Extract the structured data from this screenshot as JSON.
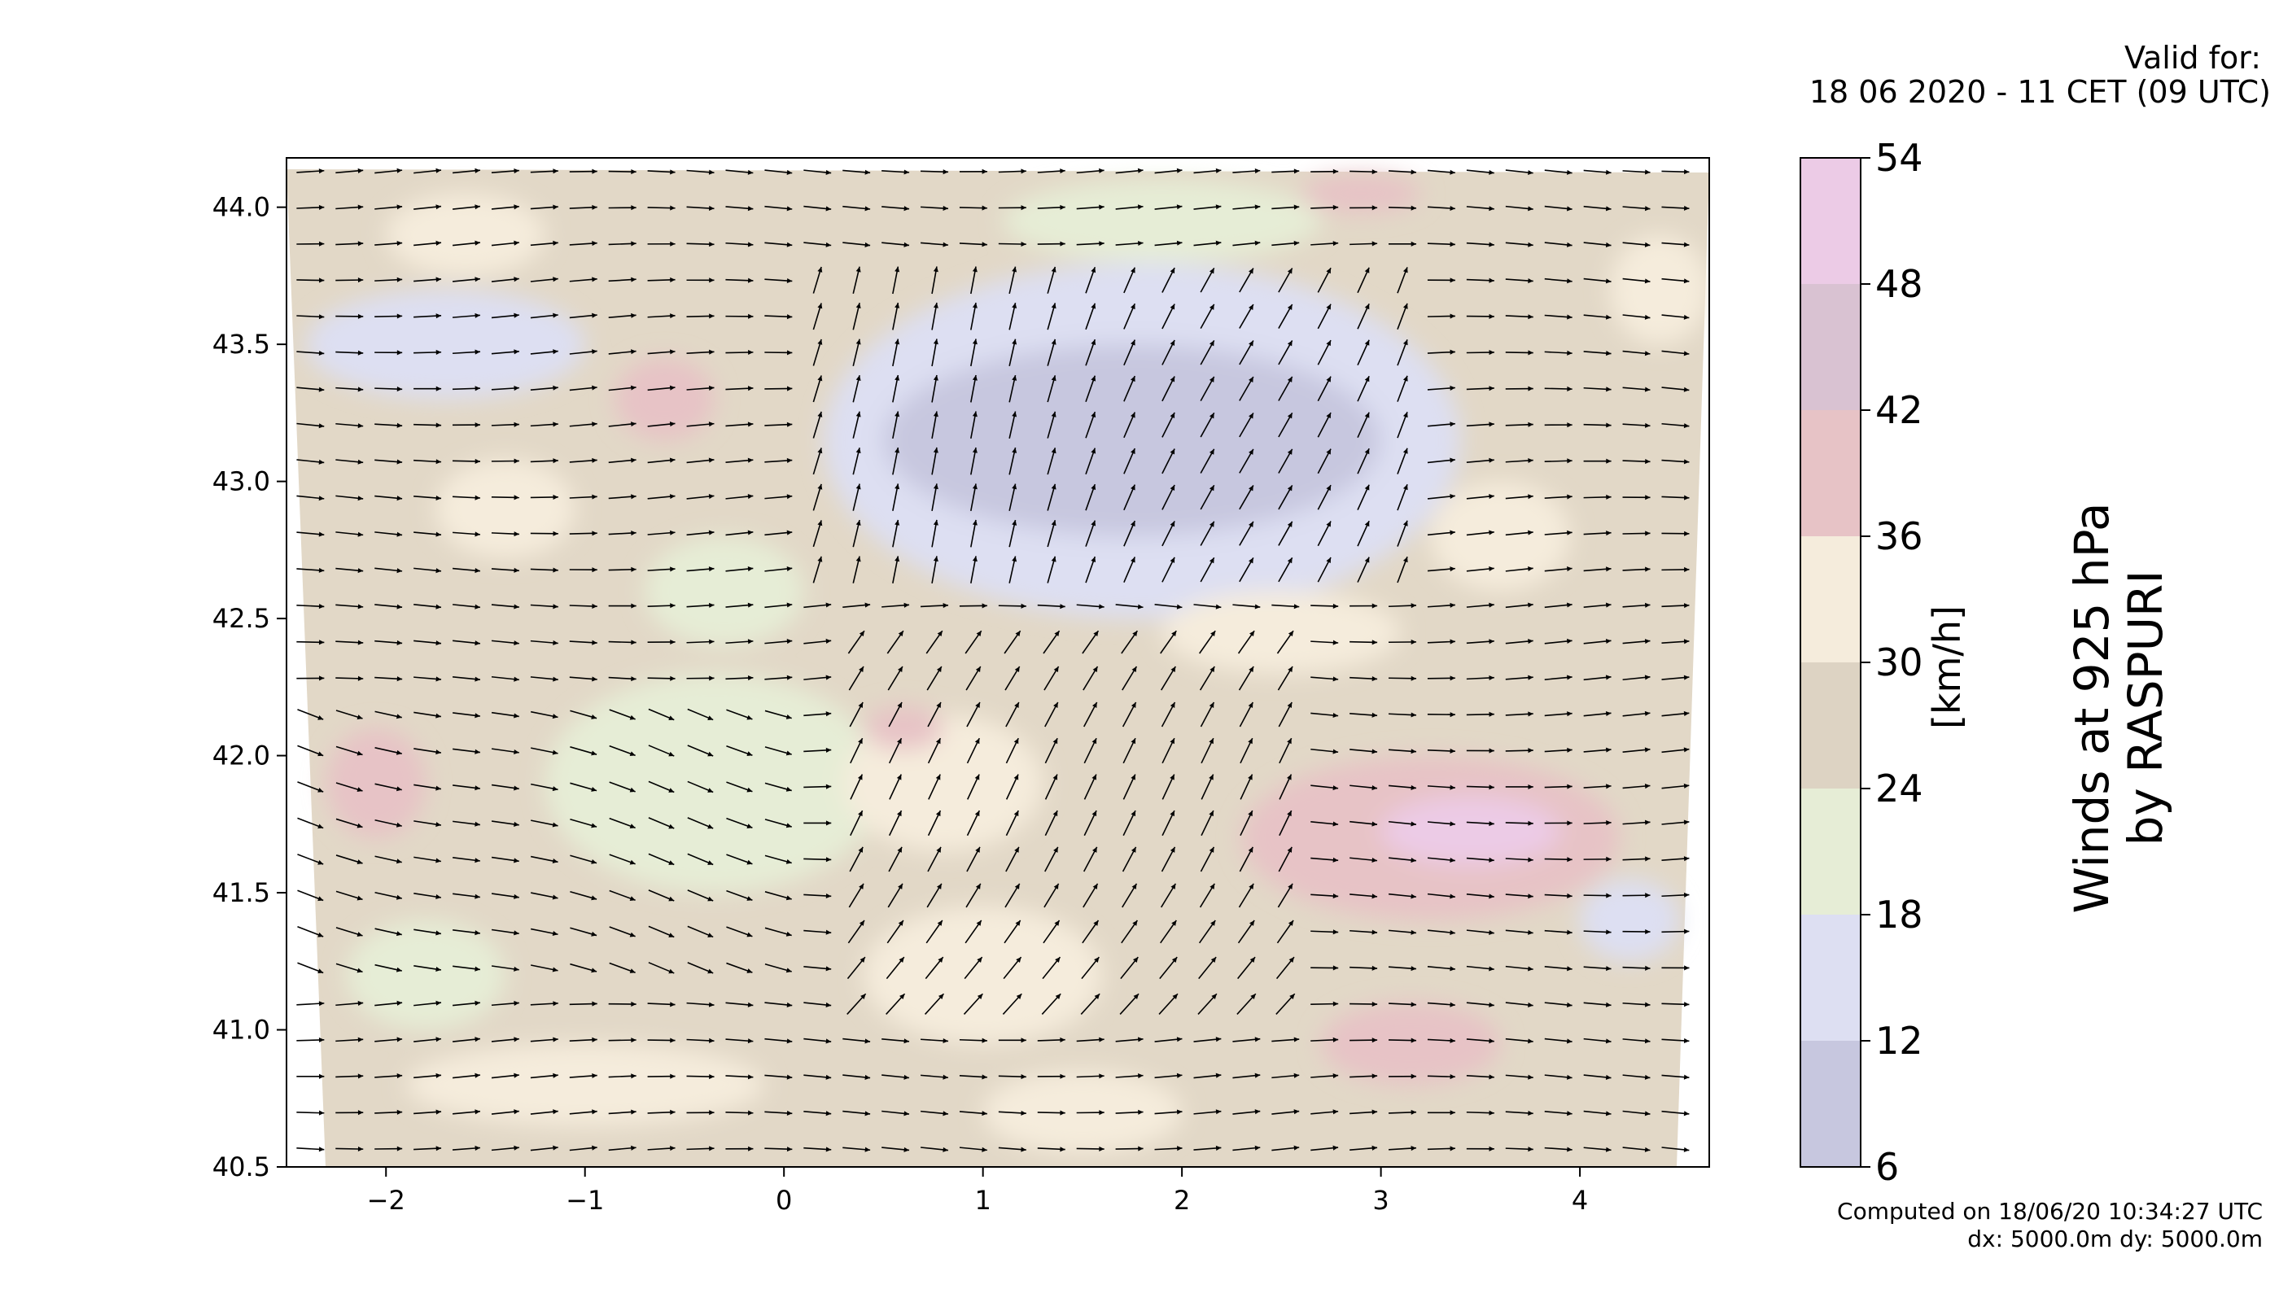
{
  "header": {
    "valid_label": "Valid for:",
    "valid_time": "18 06 2020 - 11 CET (09 UTC)"
  },
  "side_title": {
    "line1": "Winds at 925 hPa",
    "line2": "by RASPURI"
  },
  "footer": {
    "computed": "Computed on 18/06/20 10:34:27 UTC",
    "resolution": "dx: 5000.0m dy: 5000.0m"
  },
  "colorbar": {
    "unit": "[km/h]",
    "levels": [
      6,
      12,
      18,
      24,
      30,
      36,
      42,
      48,
      54
    ],
    "colors": [
      "#c7c7df",
      "#dddff2",
      "#e6edd6",
      "#ddd3c3",
      "#f5ecdc",
      "#e7c3c6",
      "#d9c2d2",
      "#eccbe6"
    ]
  },
  "chart_data": {
    "type": "heatmap",
    "title": "",
    "xlabel": "",
    "ylabel": "",
    "xlim": [
      -2.5,
      4.65
    ],
    "ylim": [
      40.5,
      44.18
    ],
    "xticks": [
      "−2",
      "−1",
      "0",
      "1",
      "2",
      "3",
      "4"
    ],
    "xtick_values": [
      -2,
      -1,
      0,
      1,
      2,
      3,
      4
    ],
    "yticks": [
      "40.5",
      "41.0",
      "41.5",
      "42.0",
      "42.5",
      "43.0",
      "43.5",
      "44.0"
    ],
    "ytick_values": [
      40.5,
      41.0,
      41.5,
      42.0,
      42.5,
      43.0,
      43.5,
      44.0
    ],
    "background_speed_kmh": 27,
    "regions": [
      {
        "name": "north-central low-wind core",
        "x": [
          0.5,
          3.0
        ],
        "y": [
          42.8,
          43.5
        ],
        "speed_kmh": 10
      },
      {
        "name": "north-central light winds",
        "x": [
          0.2,
          3.4
        ],
        "y": [
          42.5,
          43.8
        ],
        "speed_kmh": 15
      },
      {
        "name": "north-west light winds",
        "x": [
          -2.4,
          -1.0
        ],
        "y": [
          43.3,
          43.7
        ],
        "speed_kmh": 15
      },
      {
        "name": "south-east moderate pocket",
        "x": [
          2.7,
          3.6
        ],
        "y": [
          40.8,
          41.1
        ],
        "speed_kmh": 40
      },
      {
        "name": "east gust core",
        "x": [
          3.0,
          3.9
        ],
        "y": [
          41.6,
          41.85
        ],
        "speed_kmh": 50
      },
      {
        "name": "east gust area",
        "x": [
          2.3,
          4.2
        ],
        "y": [
          41.4,
          42.0
        ],
        "speed_kmh": 38
      },
      {
        "name": "east light winds",
        "x": [
          4.0,
          4.5
        ],
        "y": [
          41.25,
          41.55
        ],
        "speed_kmh": 14
      },
      {
        "name": "west strong area",
        "x": [
          -2.3,
          -1.8
        ],
        "y": [
          41.7,
          42.1
        ],
        "speed_kmh": 38
      },
      {
        "name": "central weak winds",
        "x": [
          -1.2,
          0.5
        ],
        "y": [
          41.5,
          42.3
        ],
        "speed_kmh": 22
      }
    ]
  }
}
